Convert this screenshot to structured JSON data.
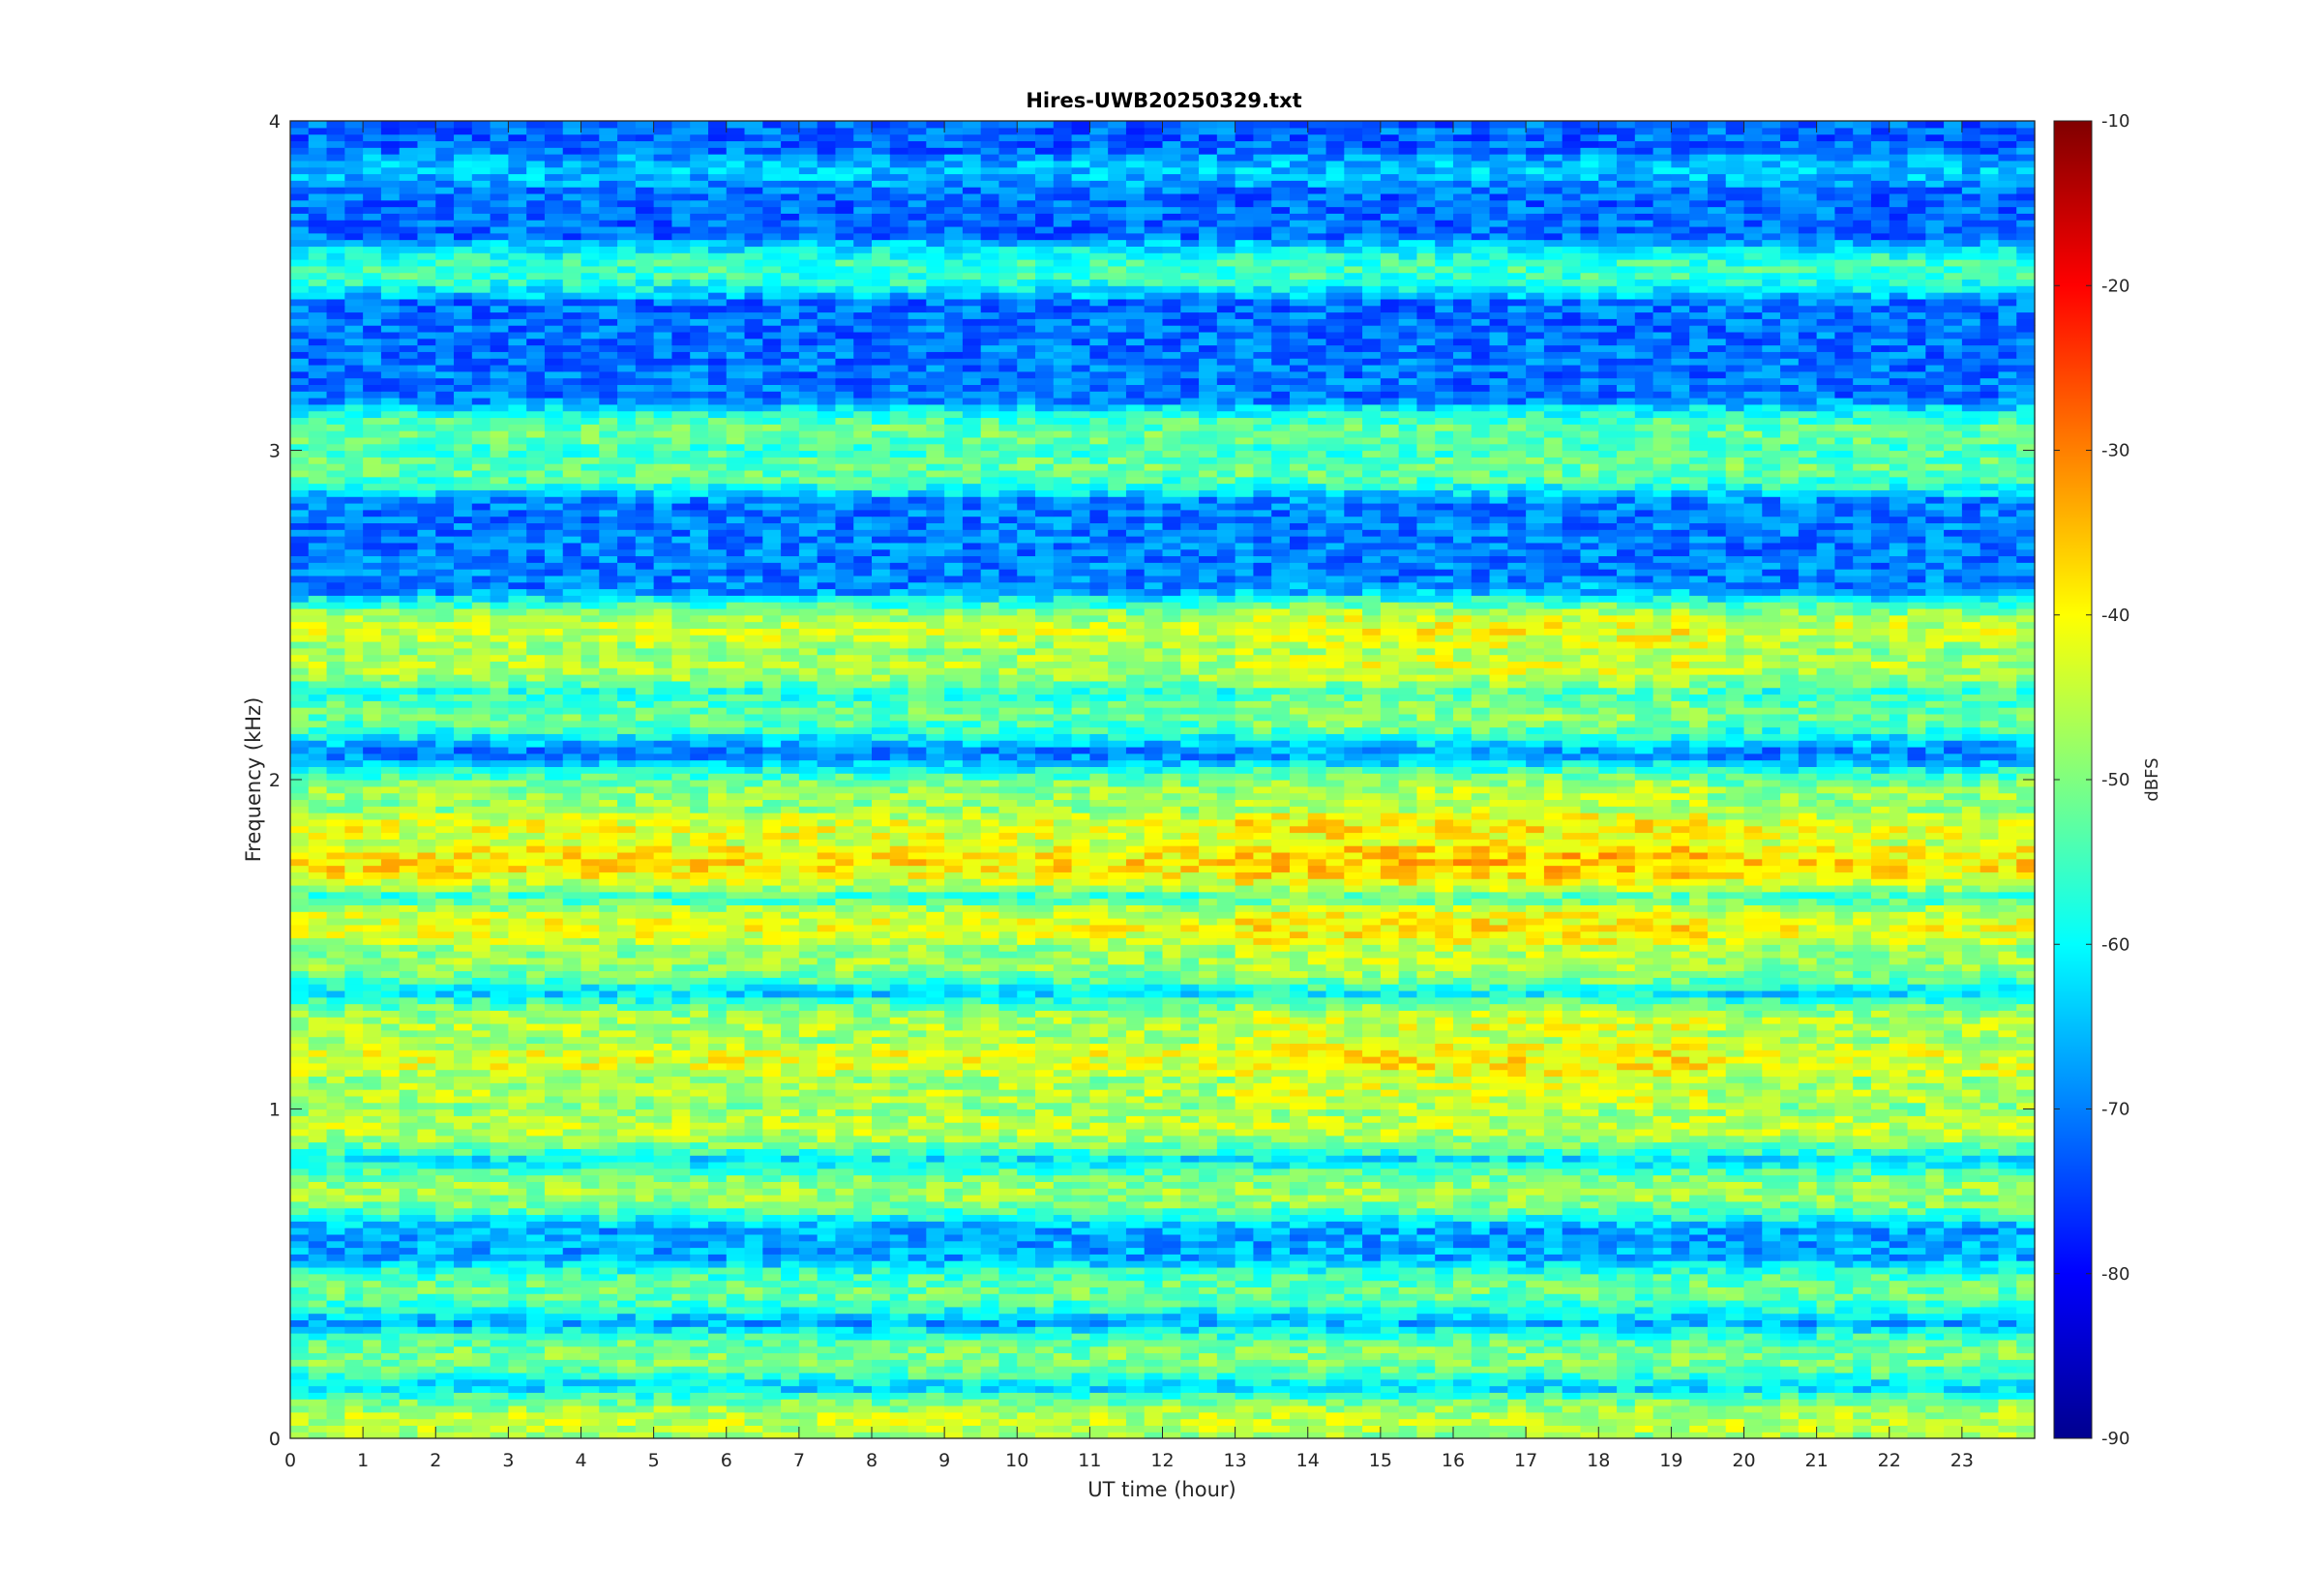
{
  "chart_data": {
    "type": "heatmap",
    "title": "Hires-UWB20250329.txt",
    "xlabel": "UT time (hour)",
    "ylabel": "Frequency (kHz)",
    "xlim": [
      0,
      24
    ],
    "ylim": [
      0,
      4
    ],
    "x_ticks": [
      "0",
      "1",
      "2",
      "3",
      "4",
      "5",
      "6",
      "7",
      "8",
      "9",
      "10",
      "11",
      "12",
      "13",
      "14",
      "15",
      "16",
      "17",
      "18",
      "19",
      "20",
      "21",
      "22",
      "23"
    ],
    "y_ticks": [
      "0",
      "1",
      "2",
      "3",
      "4"
    ],
    "colormap": "jet",
    "colorbar": {
      "label": "dBFS",
      "range": [
        -90,
        -10
      ],
      "ticks": [
        "-10",
        "-20",
        "-30",
        "-40",
        "-50",
        "-60",
        "-70",
        "-80",
        "-90"
      ]
    },
    "frequency_bands_khz": [
      {
        "f": 0.05,
        "level_dbfs": -45
      },
      {
        "f": 0.11,
        "level_dbfs": -75
      },
      {
        "f": 0.25,
        "level_dbfs": -50
      },
      {
        "f": 0.45,
        "level_dbfs": -52
      },
      {
        "f": 0.75,
        "level_dbfs": -48
      },
      {
        "f": 0.95,
        "level_dbfs": -45
      },
      {
        "f": 1.05,
        "level_dbfs": -46
      },
      {
        "f": 1.15,
        "level_dbfs": -42
      },
      {
        "f": 1.25,
        "level_dbfs": -46
      },
      {
        "f": 1.45,
        "level_dbfs": -48
      },
      {
        "f": 1.55,
        "level_dbfs": -42
      },
      {
        "f": 1.75,
        "level_dbfs": -38
      },
      {
        "f": 1.85,
        "level_dbfs": -42
      },
      {
        "f": 1.95,
        "level_dbfs": -48
      },
      {
        "f": 2.2,
        "level_dbfs": -52
      },
      {
        "f": 2.35,
        "level_dbfs": -46
      },
      {
        "f": 2.45,
        "level_dbfs": -44
      },
      {
        "f": 2.95,
        "level_dbfs": -52
      },
      {
        "f": 3.05,
        "level_dbfs": -52
      },
      {
        "f": 3.55,
        "level_dbfs": -55
      },
      {
        "f": 3.85,
        "level_dbfs": -65
      }
    ]
  }
}
